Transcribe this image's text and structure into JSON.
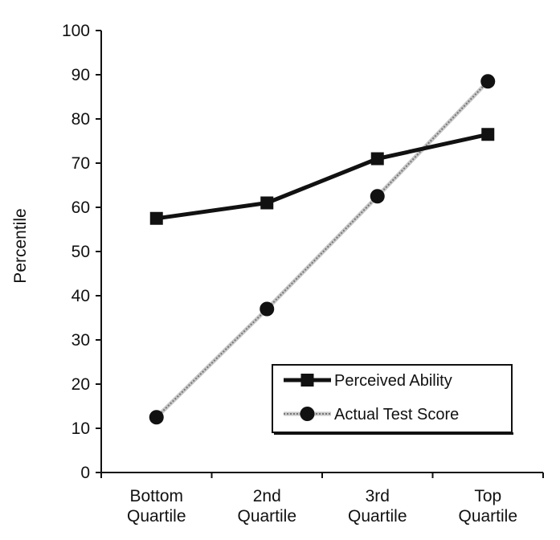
{
  "chart_data": {
    "type": "line",
    "title": "",
    "xlabel": "",
    "ylabel": "Percentile",
    "ylim": [
      0,
      100
    ],
    "yticks": [
      "0",
      "10",
      "20",
      "30",
      "40",
      "50",
      "60",
      "70",
      "80",
      "90",
      "100"
    ],
    "categories": [
      [
        "Bottom",
        "Quartile"
      ],
      [
        "2nd",
        "Quartile"
      ],
      [
        "3rd",
        "Quartile"
      ],
      [
        "Top",
        "Quartile"
      ]
    ],
    "series": [
      {
        "name": "Perceived Ability",
        "values": [
          57.5,
          61,
          71,
          76.5
        ],
        "marker": "square",
        "color": "#111111",
        "style": "solid"
      },
      {
        "name": "Actual Test Score",
        "values": [
          12.5,
          37,
          62.5,
          88.5
        ],
        "marker": "circle",
        "color": "#9a9a9a",
        "style": "dotted"
      }
    ],
    "legend_position": "bottom-right",
    "grid": false
  }
}
